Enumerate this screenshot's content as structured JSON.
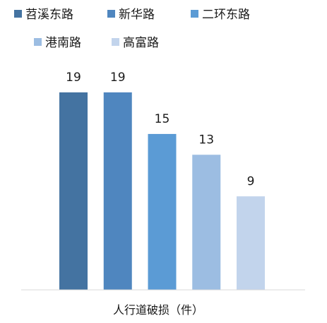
{
  "chart_data": {
    "type": "bar",
    "categories": [
      "苕溪东路",
      "新华路",
      "二环东路",
      "港南路",
      "高富路"
    ],
    "values": [
      19,
      19,
      15,
      13,
      9
    ],
    "colors": [
      "#4473a1",
      "#4f86bf",
      "#5b9bd5",
      "#9cbde2",
      "#c2d4ec"
    ],
    "title": "",
    "xlabel": "人行道破损（件）",
    "ylabel": "",
    "ylim": [
      0,
      19
    ],
    "grid": false,
    "legend": "top"
  }
}
